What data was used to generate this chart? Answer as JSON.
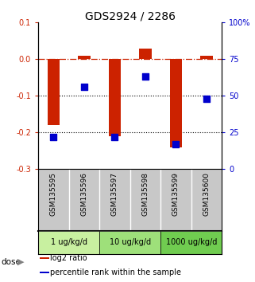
{
  "title": "GDS2924 / 2286",
  "samples": [
    "GSM135595",
    "GSM135596",
    "GSM135597",
    "GSM135598",
    "GSM135599",
    "GSM135600"
  ],
  "log2_ratio": [
    -0.18,
    0.01,
    -0.21,
    0.03,
    -0.24,
    0.01
  ],
  "percentile_rank": [
    22,
    56,
    22,
    63,
    17,
    48
  ],
  "dose_groups": [
    {
      "label": "1 ug/kg/d",
      "cols": [
        0,
        1
      ]
    },
    {
      "label": "10 ug/kg/d",
      "cols": [
        2,
        3
      ]
    },
    {
      "label": "1000 ug/kg/d",
      "cols": [
        4,
        5
      ]
    }
  ],
  "dose_colors": [
    "#c8f0a0",
    "#9ee07a",
    "#70cc50"
  ],
  "ylim_left": [
    -0.3,
    0.1
  ],
  "ylim_right": [
    0,
    100
  ],
  "yticks_left": [
    -0.3,
    -0.2,
    -0.1,
    0.0,
    0.1
  ],
  "yticks_right": [
    0,
    25,
    50,
    75,
    100
  ],
  "hline_dash": 0.0,
  "hlines_dot": [
    -0.1,
    -0.2
  ],
  "bar_color": "#cc2200",
  "dot_color": "#0000cc",
  "bar_width": 0.4,
  "dot_size": 35,
  "left_tick_color": "#cc2200",
  "right_tick_color": "#0000cc",
  "label_bg_color": "#c8c8c8",
  "legend_items": [
    {
      "label": "log2 ratio",
      "color": "#cc2200"
    },
    {
      "label": "percentile rank within the sample",
      "color": "#0000cc"
    }
  ]
}
